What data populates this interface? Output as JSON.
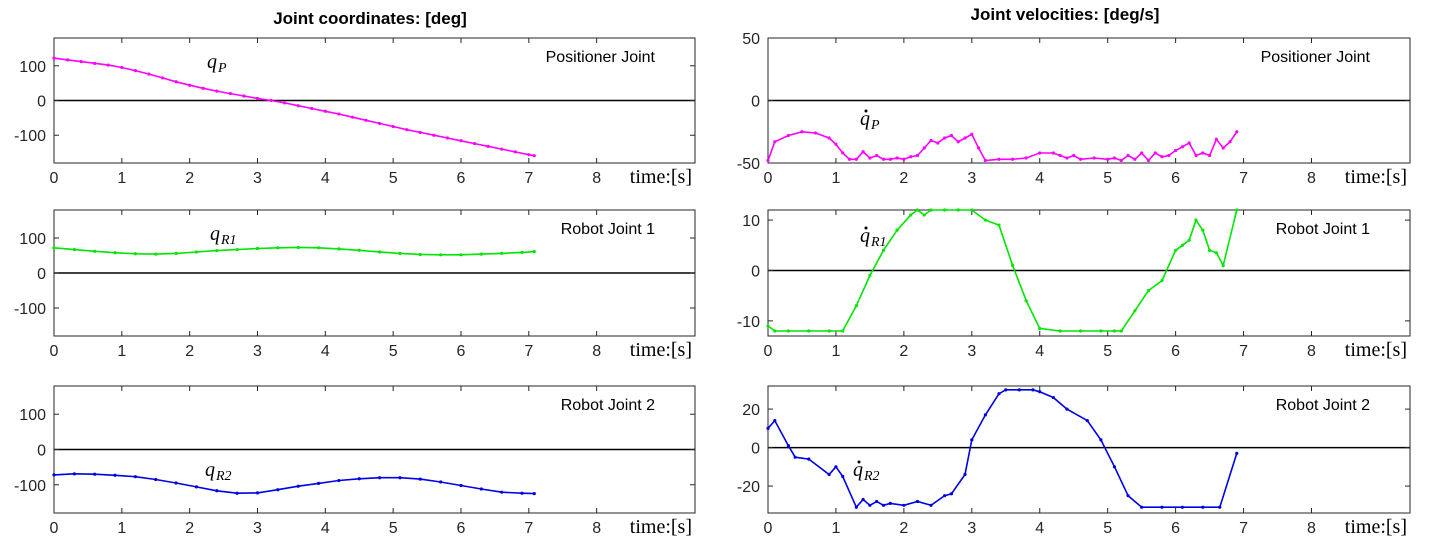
{
  "colors": {
    "magenta": "#ff00ff",
    "green": "#00e600",
    "blue": "#0000e6",
    "zero_line": "#000000",
    "axes": "#262626"
  },
  "columns": [
    {
      "title": "Joint coordinates: [deg]"
    },
    {
      "title": "Joint velocities: [deg/s]"
    }
  ],
  "xunit_label": "time:[s]",
  "chart_data": [
    {
      "type": "line",
      "column": 0,
      "row": 0,
      "title": "Joint coordinates: [deg]",
      "box_label": "Positioner Joint",
      "curve_label": {
        "symbol": "q",
        "dot": false,
        "subscript": "P"
      },
      "color": "#ff00ff",
      "xlim": [
        0,
        9
      ],
      "ylim": [
        -180,
        180
      ],
      "xticks": [
        0,
        1,
        2,
        3,
        4,
        5,
        6,
        7,
        8
      ],
      "yticks": [
        -100,
        0,
        100
      ],
      "x": [
        0,
        0.2,
        0.4,
        0.6,
        0.8,
        1.0,
        1.2,
        1.4,
        1.6,
        1.8,
        2.0,
        2.2,
        2.4,
        2.6,
        2.8,
        3.0,
        3.2,
        3.4,
        3.6,
        3.8,
        4.0,
        4.2,
        4.4,
        4.6,
        4.8,
        5.0,
        5.2,
        5.4,
        5.6,
        5.8,
        6.0,
        6.2,
        6.4,
        6.6,
        6.8,
        7.0,
        7.08
      ],
      "y": [
        122,
        117,
        112,
        107,
        102,
        95,
        86,
        76,
        65,
        54,
        44,
        35,
        27,
        20,
        13,
        6,
        0,
        -7,
        -15,
        -23,
        -31,
        -39,
        -48,
        -57,
        -66,
        -75,
        -84,
        -92,
        -100,
        -108,
        -116,
        -124,
        -132,
        -140,
        -148,
        -156,
        -159
      ],
      "zero_line": true
    },
    {
      "type": "line",
      "column": 0,
      "row": 1,
      "box_label": "Robot Joint 1",
      "curve_label": {
        "symbol": "q",
        "dot": false,
        "subscript": "R1"
      },
      "color": "#00e600",
      "xlim": [
        0,
        9
      ],
      "ylim": [
        -180,
        180
      ],
      "xticks": [
        0,
        1,
        2,
        3,
        4,
        5,
        6,
        7,
        8
      ],
      "yticks": [
        -100,
        0,
        100
      ],
      "x": [
        0,
        0.3,
        0.6,
        0.9,
        1.2,
        1.5,
        1.8,
        2.1,
        2.4,
        2.7,
        3.0,
        3.3,
        3.6,
        3.9,
        4.2,
        4.5,
        4.8,
        5.1,
        5.4,
        5.7,
        6.0,
        6.3,
        6.6,
        6.9,
        7.08
      ],
      "y": [
        72,
        67,
        62,
        58,
        55,
        54,
        56,
        60,
        64,
        67,
        70,
        72,
        73,
        72,
        69,
        65,
        60,
        56,
        53,
        52,
        52,
        54,
        56,
        59,
        61
      ],
      "zero_line": true
    },
    {
      "type": "line",
      "column": 0,
      "row": 2,
      "box_label": "Robot Joint 2",
      "curve_label": {
        "symbol": "q",
        "dot": false,
        "subscript": "R2"
      },
      "color": "#0000e6",
      "xlim": [
        0,
        9
      ],
      "ylim": [
        -180,
        180
      ],
      "xticks": [
        0,
        1,
        2,
        3,
        4,
        5,
        6,
        7,
        8
      ],
      "yticks": [
        -100,
        0,
        100
      ],
      "x": [
        0,
        0.3,
        0.6,
        0.9,
        1.2,
        1.5,
        1.8,
        2.1,
        2.4,
        2.7,
        3.0,
        3.3,
        3.6,
        3.9,
        4.2,
        4.5,
        4.8,
        5.1,
        5.4,
        5.7,
        6.0,
        6.3,
        6.6,
        6.9,
        7.08
      ],
      "y": [
        -72,
        -69,
        -70,
        -73,
        -77,
        -85,
        -95,
        -106,
        -117,
        -124,
        -123,
        -114,
        -104,
        -96,
        -88,
        -83,
        -80,
        -80,
        -84,
        -92,
        -102,
        -112,
        -121,
        -124,
        -125
      ],
      "zero_line": true
    },
    {
      "type": "line",
      "column": 1,
      "row": 0,
      "title": "Joint velocities: [deg/s]",
      "box_label": "Positioner Joint",
      "curve_label": {
        "symbol": "q",
        "dot": true,
        "subscript": "P"
      },
      "color": "#ff00ff",
      "xlim": [
        0,
        9
      ],
      "ylim": [
        -50,
        50
      ],
      "xticks": [
        0,
        1,
        2,
        3,
        4,
        5,
        6,
        7,
        8
      ],
      "yticks": [
        -50,
        0,
        50
      ],
      "x": [
        0,
        0.1,
        0.3,
        0.5,
        0.7,
        0.9,
        1.0,
        1.1,
        1.2,
        1.3,
        1.4,
        1.5,
        1.6,
        1.7,
        1.8,
        1.9,
        2.0,
        2.1,
        2.2,
        2.3,
        2.4,
        2.5,
        2.6,
        2.7,
        2.8,
        2.9,
        3.0,
        3.1,
        3.2,
        3.4,
        3.6,
        3.8,
        4.0,
        4.2,
        4.3,
        4.4,
        4.5,
        4.6,
        4.8,
        5.0,
        5.1,
        5.2,
        5.3,
        5.4,
        5.5,
        5.6,
        5.7,
        5.8,
        5.9,
        6.0,
        6.1,
        6.2,
        6.3,
        6.4,
        6.5,
        6.6,
        6.7,
        6.8,
        6.9
      ],
      "y": [
        -48,
        -33,
        -28,
        -25,
        -26,
        -30,
        -35,
        -42,
        -47,
        -47,
        -41,
        -46,
        -44,
        -47,
        -47,
        -46,
        -47,
        -45,
        -44,
        -38,
        -32,
        -34,
        -30,
        -28,
        -33,
        -30,
        -27,
        -38,
        -48,
        -47,
        -47,
        -46,
        -42,
        -42,
        -44,
        -46,
        -44,
        -47,
        -46,
        -47,
        -46,
        -48,
        -44,
        -47,
        -42,
        -48,
        -42,
        -45,
        -44,
        -40,
        -37,
        -34,
        -44,
        -42,
        -44,
        -31,
        -38,
        -33,
        -25
      ],
      "zero_line": true
    },
    {
      "type": "line",
      "column": 1,
      "row": 1,
      "box_label": "Robot Joint 1",
      "curve_label": {
        "symbol": "q",
        "dot": true,
        "subscript": "R1"
      },
      "color": "#00e600",
      "xlim": [
        0,
        9
      ],
      "ylim": [
        -13,
        12
      ],
      "xticks": [
        0,
        1,
        2,
        3,
        4,
        5,
        6,
        7,
        8
      ],
      "yticks": [
        -10,
        0,
        10
      ],
      "x": [
        0,
        0.1,
        0.3,
        0.6,
        0.9,
        1.1,
        1.3,
        1.5,
        1.7,
        1.9,
        2.1,
        2.2,
        2.3,
        2.4,
        2.6,
        2.8,
        3.0,
        3.2,
        3.4,
        3.6,
        3.8,
        4.0,
        4.3,
        4.6,
        4.9,
        5.1,
        5.2,
        5.4,
        5.6,
        5.8,
        6.0,
        6.1,
        6.2,
        6.3,
        6.4,
        6.5,
        6.6,
        6.7,
        6.9
      ],
      "y": [
        -11,
        -12,
        -12,
        -12,
        -12,
        -12,
        -7,
        -1,
        4,
        8,
        11,
        12,
        11,
        12,
        12,
        12,
        12,
        10,
        9,
        1,
        -6,
        -11.5,
        -12,
        -12,
        -12,
        -12,
        -12,
        -8,
        -4,
        -2,
        4,
        5,
        6,
        10,
        8,
        4,
        3.5,
        1,
        12
      ],
      "zero_line": true
    },
    {
      "type": "line",
      "column": 1,
      "row": 2,
      "box_label": "Robot Joint 2",
      "curve_label": {
        "symbol": "q",
        "dot": true,
        "subscript": "R2"
      },
      "color": "#0000e6",
      "xlim": [
        0,
        9
      ],
      "ylim": [
        -34,
        32
      ],
      "xticks": [
        0,
        1,
        2,
        3,
        4,
        5,
        6,
        7,
        8
      ],
      "yticks": [
        -20,
        0,
        20
      ],
      "x": [
        0,
        0.1,
        0.3,
        0.4,
        0.6,
        0.9,
        1.0,
        1.1,
        1.3,
        1.4,
        1.5,
        1.6,
        1.7,
        1.8,
        2.0,
        2.2,
        2.4,
        2.6,
        2.7,
        2.9,
        3.0,
        3.2,
        3.4,
        3.5,
        3.7,
        3.9,
        4.0,
        4.2,
        4.4,
        4.7,
        4.9,
        5.1,
        5.3,
        5.5,
        5.8,
        6.1,
        6.4,
        6.65,
        6.9
      ],
      "y": [
        10,
        14,
        1,
        -5,
        -6,
        -14,
        -10,
        -15,
        -31,
        -27,
        -30,
        -28,
        -30,
        -29,
        -30,
        -28,
        -30,
        -25,
        -24,
        -14,
        4,
        17,
        28,
        30,
        30,
        30,
        29,
        26,
        20,
        14,
        4,
        -10,
        -25,
        -31,
        -31,
        -31,
        -31,
        -31,
        -3
      ],
      "zero_line": true
    }
  ]
}
